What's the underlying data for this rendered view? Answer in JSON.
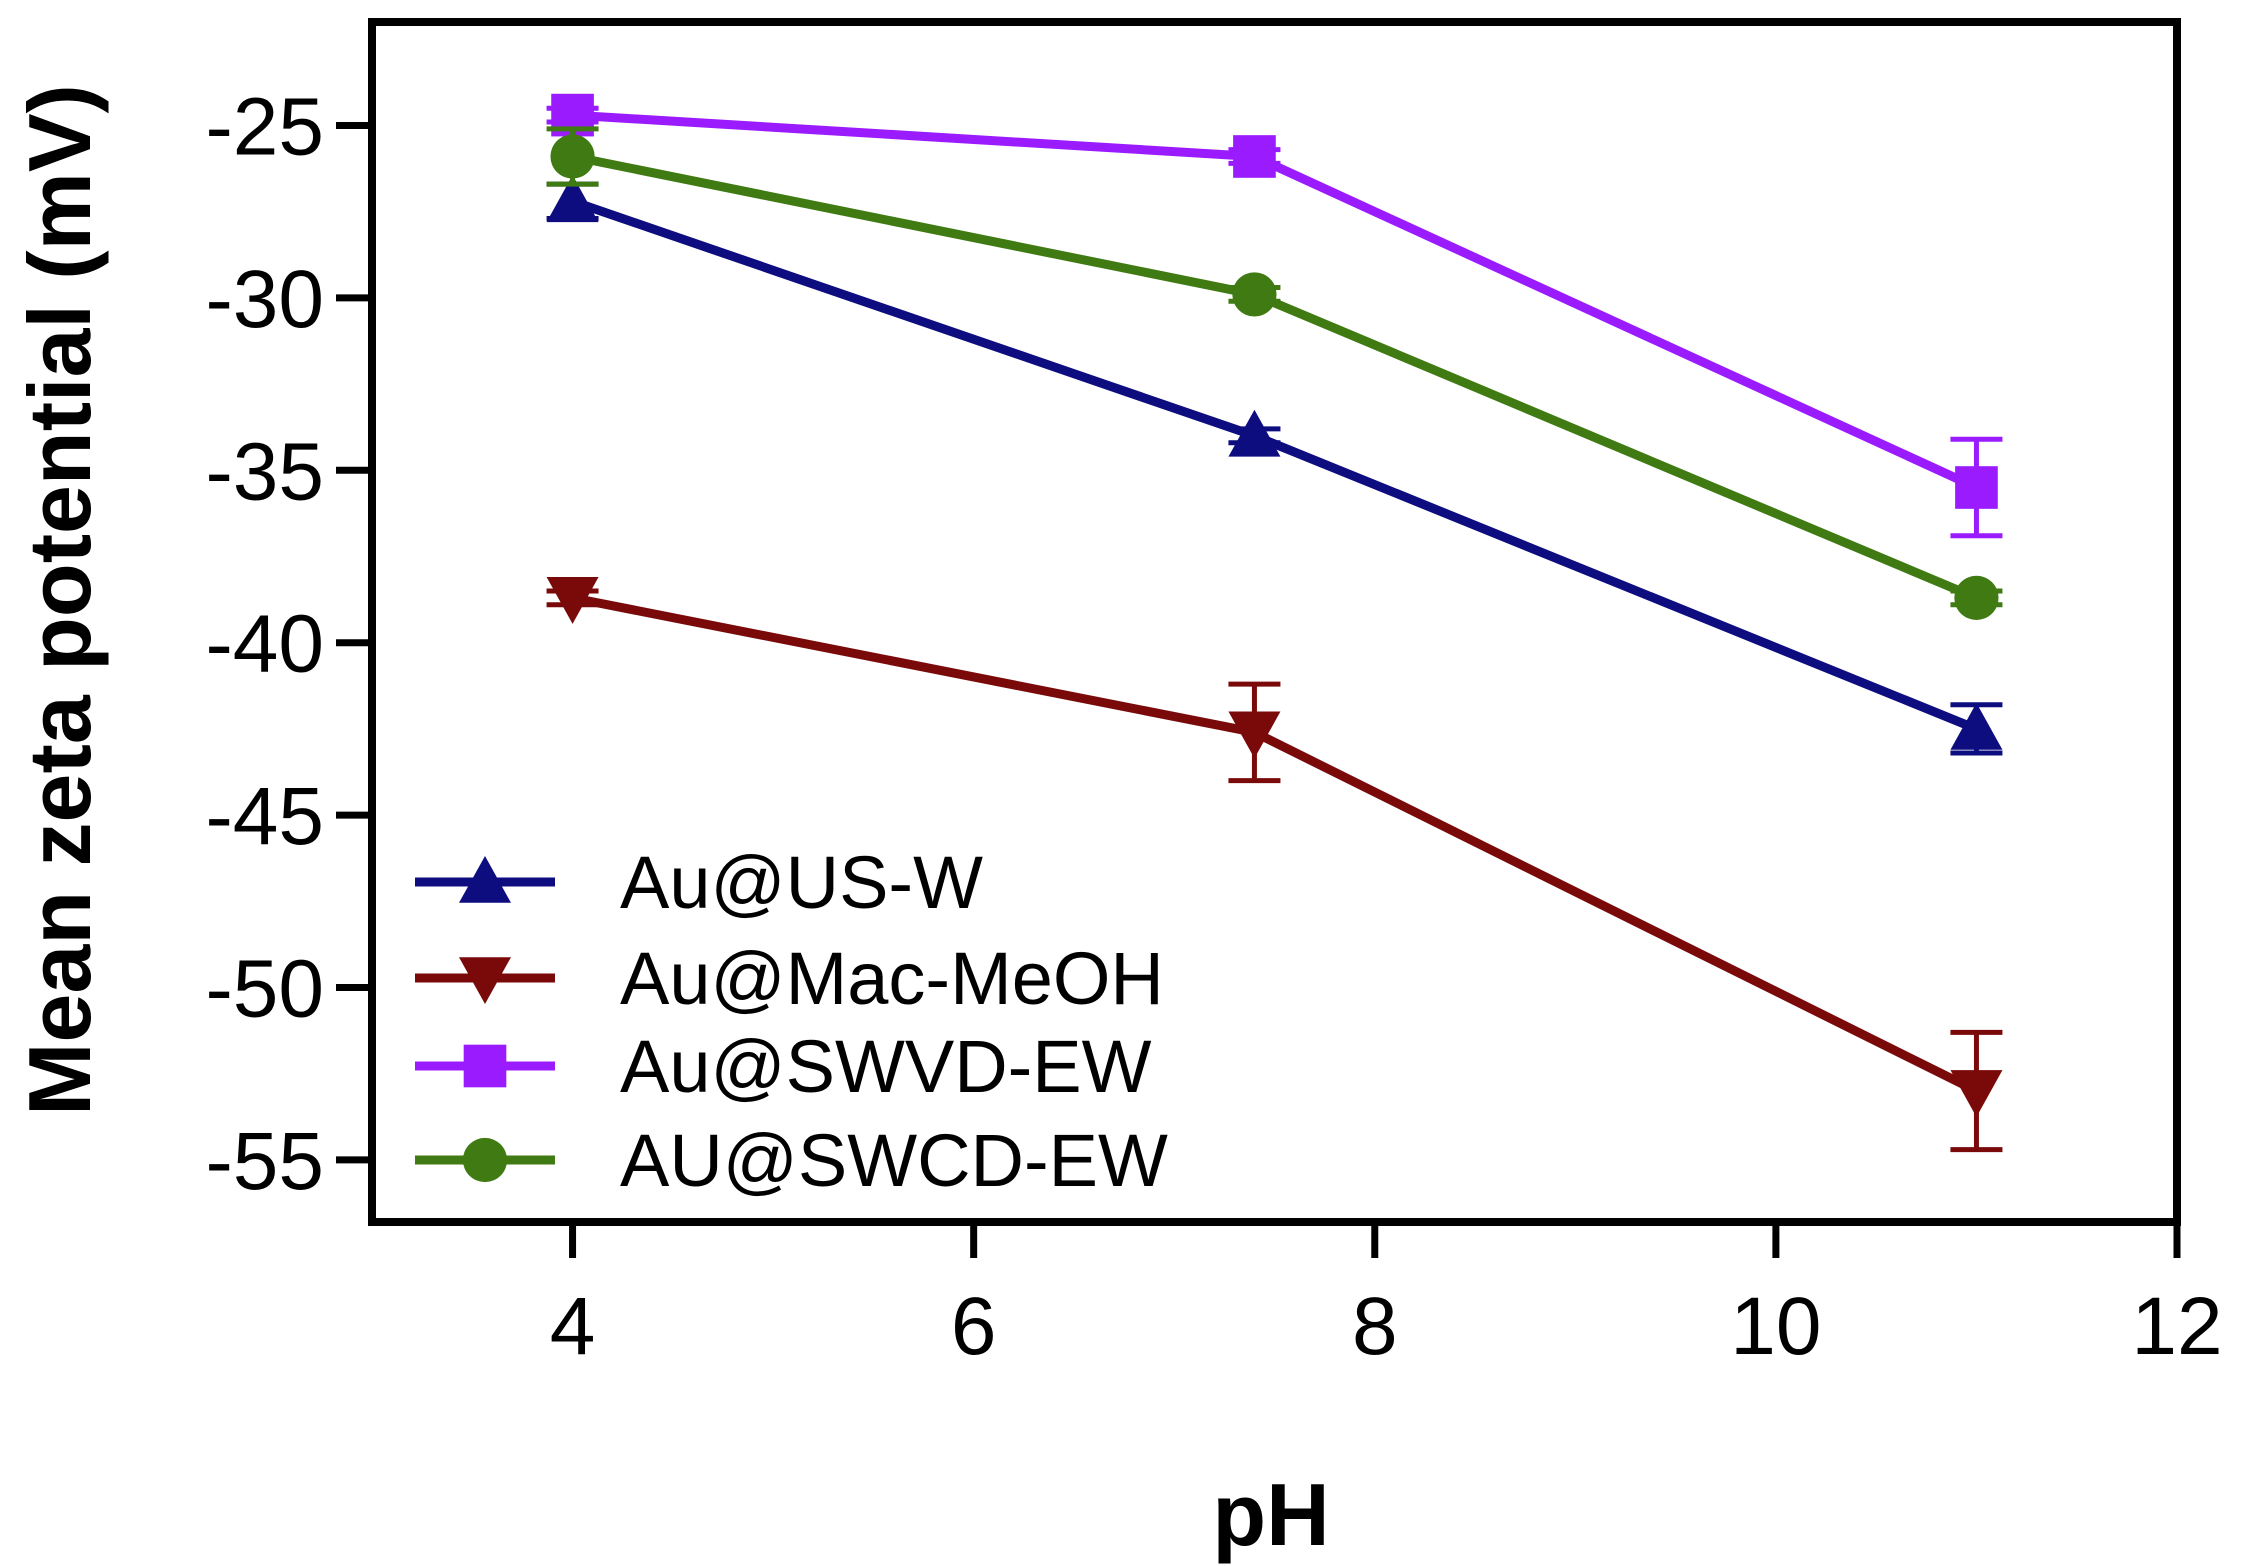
{
  "chart_data": {
    "type": "line",
    "title": "",
    "xlabel": "pH",
    "ylabel": "Mean zeta potential (mV)",
    "xlim": [
      3,
      12
    ],
    "ylim": [
      -56.8,
      -22
    ],
    "xticks": [
      4,
      6,
      8,
      10,
      12
    ],
    "xtick_labels": [
      "4",
      "6",
      "8",
      "10",
      "12"
    ],
    "yticks": [
      -25,
      -30,
      -35,
      -40,
      -45,
      -50,
      -55
    ],
    "ytick_labels": [
      "-25",
      "-30",
      "-35",
      "-40",
      "-45",
      "-50",
      "-55"
    ],
    "legend_position": "bottom-left",
    "series": [
      {
        "name": "Au@US-W",
        "color": "#0d0d80",
        "marker": "triangle-up",
        "x": [
          4,
          7.4,
          11
        ],
        "y": [
          -27.2,
          -34,
          -42.5
        ],
        "err": [
          0.5,
          0.2,
          0.7
        ]
      },
      {
        "name": "Au@Mac-MeOH",
        "color": "#7a0a0a",
        "marker": "triangle-down",
        "x": [
          4,
          7.4,
          11
        ],
        "y": [
          -38.7,
          -42.6,
          -53
        ],
        "err": [
          0.2,
          1.4,
          1.7
        ]
      },
      {
        "name": "Au@SWVD-EW",
        "color": "#9b1bff",
        "marker": "square",
        "x": [
          4,
          7.4,
          11
        ],
        "y": [
          -24.7,
          -25.9,
          -35.5
        ],
        "err": [
          0.2,
          0.2,
          1.4
        ]
      },
      {
        "name": "AU@SWCD-EW",
        "color": "#3f7a12",
        "marker": "circle",
        "x": [
          4,
          7.4,
          11
        ],
        "y": [
          -25.9,
          -29.9,
          -38.7
        ],
        "err": [
          0.8,
          0.2,
          0.2
        ]
      }
    ]
  }
}
